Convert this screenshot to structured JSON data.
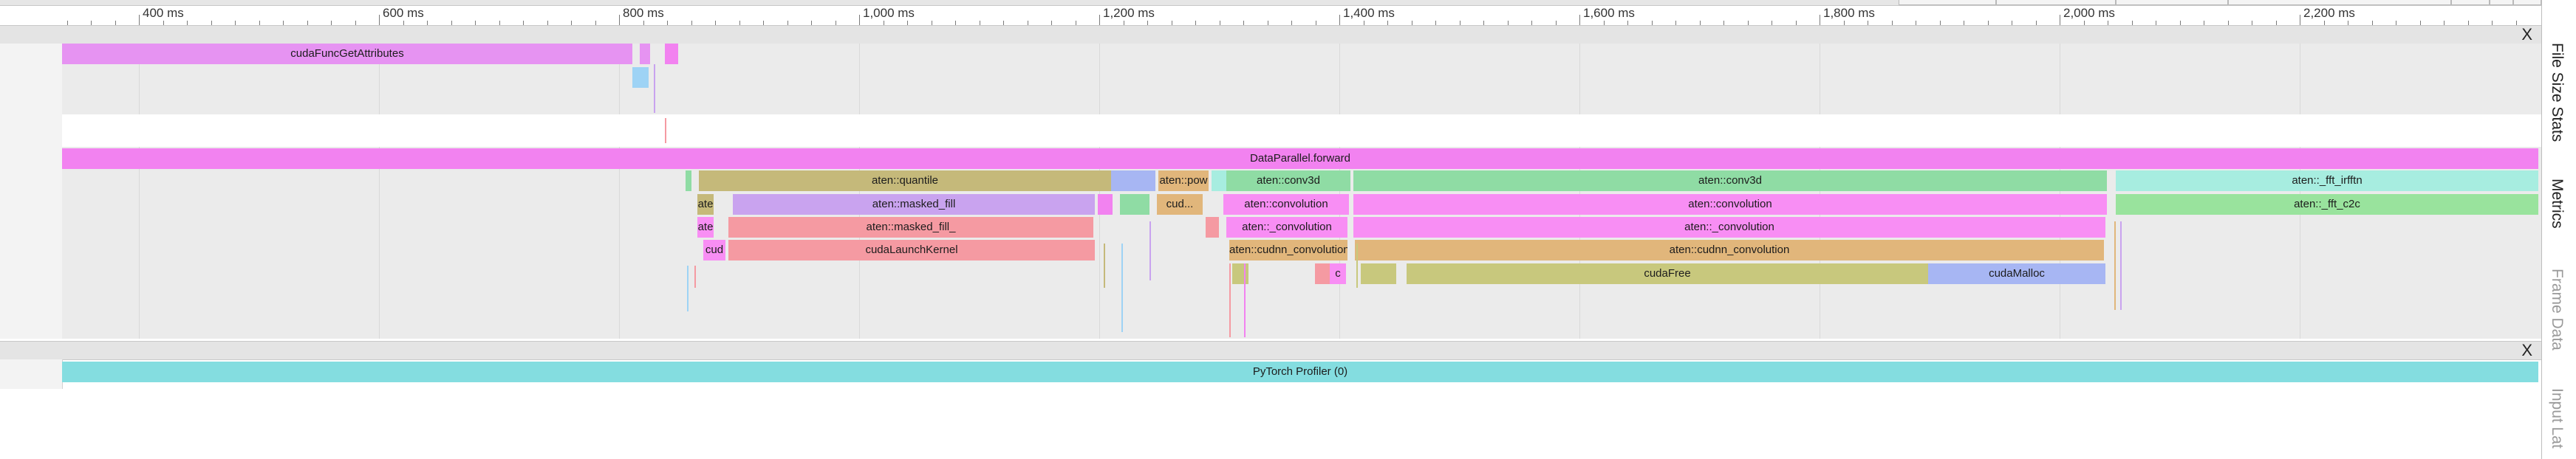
{
  "ruler": {
    "ticks": [
      "400 ms",
      "600 ms",
      "800 ms",
      "1,000 ms",
      "1,200 ms",
      "1,400 ms",
      "1,600 ms",
      "1,800 ms",
      "2,000 ms",
      "2,200 ms"
    ]
  },
  "process_1": {
    "close_label": "X",
    "thread_a": {
      "label": "cudaFuncGetAttributes"
    },
    "thread_b": {
      "row0": "DataParallel.forward",
      "row1": [
        "aten::quantile",
        "aten::pow",
        "aten::conv3d",
        "aten::conv3d",
        "aten::_fft_irfftn"
      ],
      "row2": [
        "ate",
        "aten::masked_fill",
        "cud...",
        "aten::convolution",
        "aten::convolution",
        "aten::_fft_c2c"
      ],
      "row3": [
        "ate",
        "aten::masked_fill_",
        "aten::_convolution",
        "aten::_convolution"
      ],
      "row4": [
        "cud",
        "cudaLaunchKernel",
        "aten::cudnn_convolution",
        "aten::cudnn_convolution"
      ],
      "row5": [
        "c",
        "cudaFree",
        "cudaMalloc"
      ]
    }
  },
  "process_2": {
    "close_label": "X",
    "label": "PyTorch Profiler (0)"
  },
  "side_panel": {
    "tabs": [
      "File Size Stats",
      "Metrics",
      "Frame Data",
      "Input Lat"
    ]
  },
  "colors": {
    "magenta": "#f282f0",
    "violet": "#e693f2",
    "olive": "#c5b97a",
    "green": "#8fdca4",
    "mint": "#a7ede0",
    "salmon": "#f59aa2",
    "lilac": "#c9a3ef",
    "pink": "#f88ef4",
    "tan": "#e1b67b",
    "khaki": "#c8c87d",
    "blue": "#a7b6f3",
    "teal": "#84dde0",
    "light_green": "#99e39d"
  }
}
